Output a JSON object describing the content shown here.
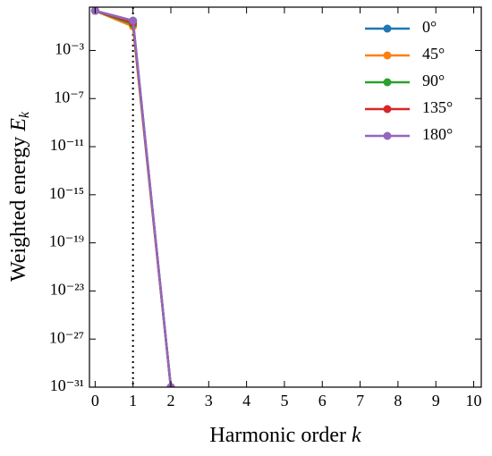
{
  "chart_data": {
    "type": "line",
    "xlabel": [
      "Harmonic order ",
      "k"
    ],
    "ylabel": [
      "Weighted energy ",
      "E",
      "k"
    ],
    "x": [
      0,
      1,
      2
    ],
    "series": [
      {
        "name": "0°",
        "color": "#1f77b4",
        "values": [
          2,
          0.3,
          1e-31
        ]
      },
      {
        "name": "45°",
        "color": "#ff7f0e",
        "values": [
          2,
          0.1,
          1e-31
        ]
      },
      {
        "name": "90°",
        "color": "#2ca02c",
        "values": [
          2,
          0.15,
          1e-31
        ]
      },
      {
        "name": "135°",
        "color": "#d62728",
        "values": [
          2,
          0.2,
          1e-31
        ]
      },
      {
        "name": "180°",
        "color": "#9467bd",
        "values": [
          2,
          0.3,
          1e-31
        ]
      }
    ],
    "xlim": [
      -0.15,
      10.2
    ],
    "xticks": [
      0,
      1,
      2,
      3,
      4,
      5,
      6,
      7,
      8,
      9,
      10
    ],
    "ylim": [
      1e-31,
      4
    ],
    "log_y": true,
    "yticks": [
      {
        "value": 0.001,
        "label": "10⁻³"
      },
      {
        "value": 1e-07,
        "label": "10⁻⁷"
      },
      {
        "value": 1e-11,
        "label": "10⁻¹¹"
      },
      {
        "value": 1e-15,
        "label": "10⁻¹⁵"
      },
      {
        "value": 1e-19,
        "label": "10⁻¹⁹"
      },
      {
        "value": 1e-23,
        "label": "10⁻²³"
      },
      {
        "value": 1e-27,
        "label": "10⁻²⁷"
      },
      {
        "value": 1e-31,
        "label": "10⁻³¹"
      }
    ],
    "vline_x": 1,
    "legend": "upper right"
  }
}
